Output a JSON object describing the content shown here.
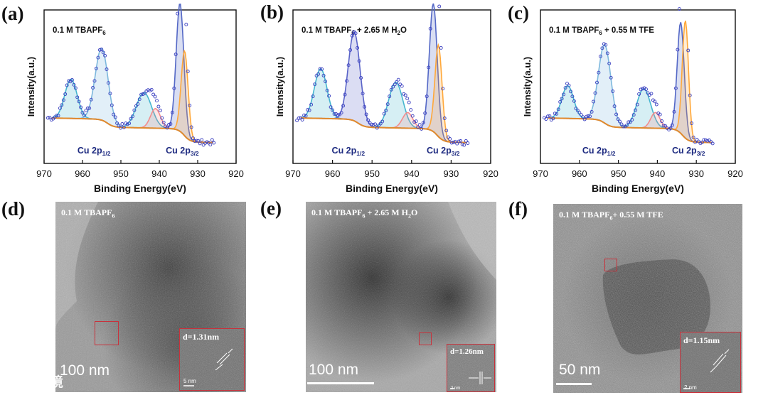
{
  "panels": {
    "a": {
      "letter": "(a)",
      "label_main": "0.1 M TBAPF",
      "label_sub": "6",
      "label_rest": ""
    },
    "b": {
      "letter": "(b)",
      "label_main": "0.1 M TBAPF",
      "label_sub": "6",
      "label_rest": " + 2.65 M H",
      "label_sub2": "2",
      "label_rest2": "O"
    },
    "c": {
      "letter": "(c)",
      "label_main": "0.1 M TBAPF",
      "label_sub": "6",
      "label_rest": " + 0.55 M TFE"
    },
    "d": {
      "letter": "(d)",
      "label_main": "0.1 M TBAPF",
      "label_sub": "6",
      "label_rest": "",
      "scale": "100 nm",
      "inset": "d=1.31nm",
      "mini_scale": "5 nm"
    },
    "e": {
      "letter": "(e)",
      "label_main": "0.1 M TBAPF",
      "label_sub": "6",
      "label_rest": " + 2.65 M H",
      "label_sub2": "2",
      "label_rest2": "O",
      "scale": "100 nm",
      "inset": "d=1.26nm",
      "mini_scale": "2 nm"
    },
    "f": {
      "letter": "(f)",
      "label_main": "0.1 M TBAPF",
      "label_sub": "6",
      "label_rest": "+ 0.55 M TFE",
      "scale": "50 nm",
      "inset": "d=1.15nm",
      "mini_scale": "2 nm"
    }
  },
  "watermark": "大数跨境",
  "chart_data": [
    {
      "type": "scatter",
      "panel": "a",
      "xlabel": "Binding Energy(eV)",
      "ylabel": "Intensity(a.u.)",
      "xlim": [
        970,
        920
      ],
      "xticks": [
        970,
        960,
        950,
        940,
        930,
        920
      ],
      "annotations": [
        {
          "text": "Cu 2p",
          "sub": "1/2",
          "x": 957
        },
        {
          "text": "Cu 2p",
          "sub": "3/2",
          "x": 934
        }
      ],
      "peaks": [
        {
          "x": 963,
          "h": 0.3,
          "w": 1.6
        },
        {
          "x": 955,
          "h": 0.55,
          "w": 1.7
        },
        {
          "x": 944,
          "h": 0.27,
          "w": 2.0
        },
        {
          "x": 941,
          "h": 0.15,
          "w": 1.3
        },
        {
          "x": 934.6,
          "h": 0.98,
          "w": 1.0
        },
        {
          "x": 933.4,
          "h": 0.65,
          "w": 0.9
        }
      ],
      "fit_colors": [
        "#45b5cf",
        "#7db8dd",
        "#ffa83a",
        "#f28c8c"
      ]
    },
    {
      "type": "scatter",
      "panel": "b",
      "xlabel": "Binding Energy(eV)",
      "ylabel": "Intensity(a.u.)",
      "xlim": [
        970,
        920
      ],
      "xticks": [
        970,
        960,
        950,
        940,
        930,
        920
      ],
      "annotations": [
        {
          "text": "Cu 2p",
          "sub": "1/2",
          "x": 956
        },
        {
          "text": "Cu 2p",
          "sub": "3/2",
          "x": 932
        }
      ],
      "peaks": [
        {
          "x": 963,
          "h": 0.38,
          "w": 1.6
        },
        {
          "x": 954.5,
          "h": 0.68,
          "w": 1.5
        },
        {
          "x": 944,
          "h": 0.35,
          "w": 1.8
        },
        {
          "x": 941,
          "h": 0.12,
          "w": 1.3
        },
        {
          "x": 934.5,
          "h": 0.98,
          "w": 1.0
        },
        {
          "x": 933.2,
          "h": 0.7,
          "w": 0.9
        }
      ],
      "fit_colors": [
        "#45b5cf",
        "#5a64c8",
        "#ffa83a",
        "#f28c8c"
      ]
    },
    {
      "type": "scatter",
      "panel": "c",
      "xlabel": "Binding Energy(eV)",
      "ylabel": "Intensity(a.u.)",
      "xlim": [
        970,
        920
      ],
      "xticks": [
        970,
        960,
        950,
        940,
        930,
        920
      ],
      "annotations": [
        {
          "text": "Cu 2p",
          "sub": "1/2",
          "x": 955
        },
        {
          "text": "Cu 2p",
          "sub": "3/2",
          "x": 932
        }
      ],
      "peaks": [
        {
          "x": 963,
          "h": 0.25,
          "w": 1.5
        },
        {
          "x": 953.5,
          "h": 0.6,
          "w": 1.6
        },
        {
          "x": 943.5,
          "h": 0.3,
          "w": 1.8
        },
        {
          "x": 940.5,
          "h": 0.12,
          "w": 1.2
        },
        {
          "x": 934,
          "h": 0.85,
          "w": 0.9
        },
        {
          "x": 932.8,
          "h": 0.9,
          "w": 0.8
        }
      ],
      "fit_colors": [
        "#45b5cf",
        "#7db8dd",
        "#ffa83a",
        "#f28c8c"
      ]
    }
  ]
}
